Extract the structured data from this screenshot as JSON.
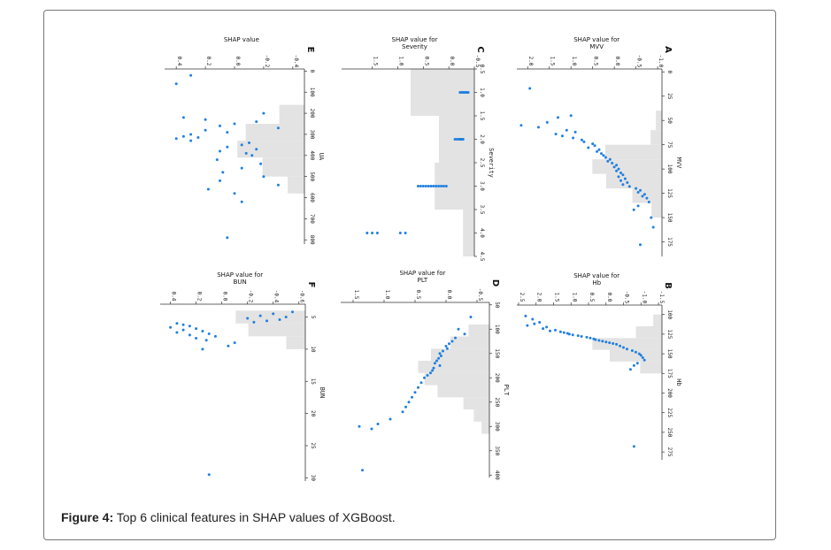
{
  "caption": {
    "label": "Figure 4:",
    "text": "Top 6 clinical features in SHAP values of XGBoost."
  },
  "colors": {
    "points": "#1f7fe0",
    "histogram": "#e3e3e3",
    "frame": "#777777"
  },
  "chart_data": [
    {
      "type": "scatter",
      "letter": "A",
      "feature": "MVV",
      "title": [
        "SHAP value for",
        "MVV"
      ],
      "xlabel": "MVV",
      "ylabel": "",
      "xlim": [
        -3,
        190
      ],
      "ylim": [
        -1.1,
        2.25
      ],
      "xticks": [
        0,
        25,
        50,
        75,
        100,
        125,
        150,
        175
      ],
      "yticks": [
        -1.0,
        -0.5,
        0.0,
        0.5,
        1.0,
        1.5,
        2.0
      ],
      "ytick_labels": [
        "-1.0",
        "-0.5",
        "0.0",
        "0.5",
        "1.0",
        "1.5",
        "2.0"
      ],
      "hist": {
        "edges": [
          40,
          60,
          75,
          90,
          105,
          120,
          135,
          150
        ],
        "counts": [
          7,
          13,
          65,
          80,
          64,
          34,
          12
        ]
      },
      "points": [
        [
          17,
          1.95
        ],
        [
          45,
          1.0
        ],
        [
          47,
          1.3
        ],
        [
          52,
          1.55
        ],
        [
          55,
          2.15
        ],
        [
          57,
          1.75
        ],
        [
          60,
          1.1
        ],
        [
          62,
          0.9
        ],
        [
          64,
          1.35
        ],
        [
          66,
          1.2
        ],
        [
          68,
          0.95
        ],
        [
          70,
          0.75
        ],
        [
          72,
          0.7
        ],
        [
          74,
          0.5
        ],
        [
          76,
          0.45
        ],
        [
          78,
          0.6
        ],
        [
          80,
          0.35
        ],
        [
          82,
          0.4
        ],
        [
          84,
          0.3
        ],
        [
          86,
          0.25
        ],
        [
          88,
          0.2
        ],
        [
          90,
          0.1
        ],
        [
          92,
          0.15
        ],
        [
          94,
          0.05
        ],
        [
          96,
          -0.05
        ],
        [
          98,
          0.0
        ],
        [
          100,
          -0.1
        ],
        [
          102,
          -0.05
        ],
        [
          104,
          -0.15
        ],
        [
          106,
          -0.2
        ],
        [
          108,
          -0.1
        ],
        [
          110,
          -0.25
        ],
        [
          112,
          -0.15
        ],
        [
          114,
          -0.3
        ],
        [
          116,
          -0.2
        ],
        [
          118,
          -0.35
        ],
        [
          120,
          -0.5
        ],
        [
          122,
          -0.6
        ],
        [
          124,
          -0.55
        ],
        [
          126,
          -0.7
        ],
        [
          128,
          -0.65
        ],
        [
          130,
          -0.75
        ],
        [
          134,
          -0.8
        ],
        [
          138,
          -0.55
        ],
        [
          142,
          -0.45
        ],
        [
          150,
          -0.85
        ],
        [
          160,
          -0.9
        ],
        [
          178,
          -0.6
        ]
      ]
    },
    {
      "type": "scatter",
      "letter": "B",
      "feature": "Hb",
      "title": [
        "SHAP value for",
        "Hb"
      ],
      "xlabel": "Hb",
      "ylabel": "",
      "xlim": [
        88,
        285
      ],
      "ylim": [
        -1.6,
        2.55
      ],
      "xticks": [
        100,
        125,
        150,
        175,
        200,
        225,
        250,
        275
      ],
      "yticks": [
        -1.5,
        -1.0,
        -0.5,
        0.0,
        0.5,
        1.0,
        1.5,
        2.0,
        2.5
      ],
      "ytick_labels": [
        "-1.5",
        "-1.0",
        "-0.5",
        "0.0",
        "0.5",
        "1.0",
        "1.5",
        "2.0",
        "2.5"
      ],
      "hist": {
        "edges": [
          100,
          115,
          130,
          145,
          160,
          175
        ],
        "counts": [
          10,
          30,
          80,
          60,
          25
        ]
      },
      "points": [
        [
          102,
          2.3
        ],
        [
          106,
          2.1
        ],
        [
          110,
          1.9
        ],
        [
          112,
          2.05
        ],
        [
          114,
          2.25
        ],
        [
          116,
          1.7
        ],
        [
          118,
          1.8
        ],
        [
          120,
          1.45
        ],
        [
          121,
          1.6
        ],
        [
          122,
          1.3
        ],
        [
          123,
          1.2
        ],
        [
          124,
          1.1
        ],
        [
          125,
          1.05
        ],
        [
          126,
          0.95
        ],
        [
          127,
          0.8
        ],
        [
          128,
          0.7
        ],
        [
          129,
          0.55
        ],
        [
          130,
          0.45
        ],
        [
          131,
          0.35
        ],
        [
          132,
          0.3
        ],
        [
          133,
          0.2
        ],
        [
          134,
          0.1
        ],
        [
          135,
          0.0
        ],
        [
          136,
          -0.1
        ],
        [
          137,
          -0.2
        ],
        [
          138,
          -0.3
        ],
        [
          140,
          -0.4
        ],
        [
          142,
          -0.5
        ],
        [
          144,
          -0.6
        ],
        [
          146,
          -0.75
        ],
        [
          148,
          -0.85
        ],
        [
          150,
          -0.95
        ],
        [
          152,
          -1.0
        ],
        [
          155,
          -1.05
        ],
        [
          158,
          -1.1
        ],
        [
          162,
          -0.9
        ],
        [
          165,
          -0.8
        ],
        [
          170,
          -0.7
        ],
        [
          268,
          -0.8
        ]
      ]
    },
    {
      "type": "scatter",
      "letter": "C",
      "feature": "Severity",
      "title": [
        "SHAP value for",
        "Severity"
      ],
      "xlabel": "Severity",
      "ylabel": "",
      "xlim": [
        0.5,
        4.5
      ],
      "ylim": [
        -0.5,
        2.1
      ],
      "xticks": [
        0.5,
        1.0,
        1.5,
        2.0,
        2.5,
        3.0,
        3.5,
        4.0,
        4.5
      ],
      "xtick_labels": [
        "0.5",
        "1.0",
        "1.5",
        "2.0",
        "2.5",
        "3.0",
        "3.5",
        "4.0",
        "4.5"
      ],
      "yticks": [
        -0.5,
        0.0,
        0.5,
        1.0,
        1.5
      ],
      "ytick_labels": [
        "-0.5",
        "0.0",
        "0.5",
        "1.0",
        "1.5"
      ],
      "hist": {
        "edges": [
          0.5,
          1.5,
          2.5,
          3.5,
          4.5
        ],
        "counts": [
          45,
          25,
          28,
          8
        ]
      },
      "points": [
        [
          1.0,
          -0.38
        ],
        [
          1.0,
          -0.33
        ],
        [
          1.0,
          -0.28
        ],
        [
          1.0,
          -0.25
        ],
        [
          1.0,
          -0.22
        ],
        [
          1.0,
          -0.3
        ],
        [
          1.0,
          -0.35
        ],
        [
          2.0,
          -0.28
        ],
        [
          2.0,
          -0.24
        ],
        [
          2.0,
          -0.2
        ],
        [
          2.0,
          -0.16
        ],
        [
          2.0,
          -0.12
        ],
        [
          2.0,
          -0.22
        ],
        [
          2.0,
          -0.26
        ],
        [
          3.0,
          0.05
        ],
        [
          3.0,
          0.1
        ],
        [
          3.0,
          0.15
        ],
        [
          3.0,
          0.2
        ],
        [
          3.0,
          0.25
        ],
        [
          3.0,
          0.3
        ],
        [
          3.0,
          0.35
        ],
        [
          3.0,
          0.4
        ],
        [
          3.0,
          0.45
        ],
        [
          3.0,
          0.5
        ],
        [
          3.0,
          0.55
        ],
        [
          3.0,
          0.6
        ],
        [
          4.0,
          0.85
        ],
        [
          4.0,
          0.95
        ],
        [
          4.0,
          1.4
        ],
        [
          4.0,
          1.5
        ],
        [
          4.0,
          1.6
        ]
      ]
    },
    {
      "type": "scatter",
      "letter": "D",
      "feature": "PLT",
      "title": [
        "SHAP value for",
        "PLT"
      ],
      "xlabel": "PLT",
      "ylabel": "",
      "xlim": [
        45,
        405
      ],
      "ylim": [
        -0.7,
        1.7
      ],
      "xticks": [
        50,
        100,
        150,
        200,
        250,
        300,
        350,
        400
      ],
      "yticks": [
        -0.5,
        0.0,
        0.5,
        1.0,
        1.5
      ],
      "ytick_labels": [
        "-0.5",
        "0.0",
        "0.5",
        "1.0",
        "1.5"
      ],
      "hist": {
        "edges": [
          90,
          115,
          140,
          165,
          190,
          215,
          240,
          265,
          290,
          315
        ],
        "counts": [
          16,
          30,
          45,
          55,
          50,
          40,
          20,
          12,
          6
        ]
      },
      "points": [
        [
          75,
          -0.4
        ],
        [
          100,
          -0.2
        ],
        [
          110,
          -0.3
        ],
        [
          118,
          -0.15
        ],
        [
          125,
          -0.1
        ],
        [
          130,
          -0.05
        ],
        [
          135,
          0.0
        ],
        [
          140,
          -0.02
        ],
        [
          145,
          0.05
        ],
        [
          150,
          0.1
        ],
        [
          155,
          0.08
        ],
        [
          160,
          0.12
        ],
        [
          165,
          0.15
        ],
        [
          170,
          0.18
        ],
        [
          175,
          0.1
        ],
        [
          180,
          0.2
        ],
        [
          185,
          0.22
        ],
        [
          190,
          0.25
        ],
        [
          195,
          0.3
        ],
        [
          200,
          0.35
        ],
        [
          210,
          0.4
        ],
        [
          220,
          0.45
        ],
        [
          230,
          0.5
        ],
        [
          240,
          0.55
        ],
        [
          250,
          0.6
        ],
        [
          260,
          0.65
        ],
        [
          270,
          0.7
        ],
        [
          285,
          0.9
        ],
        [
          295,
          1.1
        ],
        [
          300,
          1.4
        ],
        [
          305,
          1.2
        ],
        [
          390,
          1.35
        ]
      ]
    },
    {
      "type": "scatter",
      "letter": "E",
      "feature": "UA",
      "title": [
        "SHAP value",
        ""
      ],
      "xlabel": "UA",
      "ylabel": "",
      "xlim": [
        -10,
        820
      ],
      "ylim": [
        -0.48,
        0.48
      ],
      "xticks": [
        0,
        100,
        200,
        300,
        400,
        500,
        600,
        700,
        800
      ],
      "yticks": [
        -0.4,
        -0.2,
        0.0,
        0.2,
        0.4
      ],
      "ytick_labels": [
        "-0.4",
        "-0.2",
        "0.0",
        "0.2",
        "0.4"
      ],
      "hist": {
        "edges": [
          160,
          250,
          330,
          410,
          500,
          580
        ],
        "counts": [
          30,
          70,
          80,
          50,
          20
        ]
      },
      "points": [
        [
          20,
          0.3
        ],
        [
          60,
          0.4
        ],
        [
          200,
          -0.2
        ],
        [
          220,
          0.35
        ],
        [
          230,
          0.2
        ],
        [
          240,
          -0.15
        ],
        [
          250,
          0.0
        ],
        [
          260,
          0.1
        ],
        [
          270,
          -0.3
        ],
        [
          280,
          0.2
        ],
        [
          290,
          0.05
        ],
        [
          300,
          0.3
        ],
        [
          310,
          0.35
        ],
        [
          315,
          0.25
        ],
        [
          320,
          0.4
        ],
        [
          330,
          0.3
        ],
        [
          340,
          -0.1
        ],
        [
          350,
          -0.05
        ],
        [
          360,
          0.05
        ],
        [
          370,
          -0.15
        ],
        [
          380,
          0.1
        ],
        [
          390,
          -0.08
        ],
        [
          400,
          -0.12
        ],
        [
          420,
          0.12
        ],
        [
          440,
          -0.18
        ],
        [
          460,
          -0.05
        ],
        [
          480,
          0.08
        ],
        [
          500,
          -0.2
        ],
        [
          520,
          0.1
        ],
        [
          540,
          -0.3
        ],
        [
          560,
          0.18
        ],
        [
          580,
          0.0
        ],
        [
          620,
          -0.05
        ],
        [
          790,
          0.05
        ]
      ]
    },
    {
      "type": "scatter",
      "letter": "F",
      "feature": "BUN",
      "title": [
        "SHAP value for",
        "BUN"
      ],
      "xlabel": "BUN",
      "ylabel": "",
      "xlim": [
        3,
        30.5
      ],
      "ylim": [
        -0.65,
        0.48
      ],
      "xticks": [
        5,
        10,
        15,
        20,
        25,
        30
      ],
      "yticks": [
        -0.6,
        -0.4,
        -0.2,
        0.0,
        0.2,
        0.4
      ],
      "ytick_labels": [
        "-0.6",
        "-0.4",
        "-0.2",
        "0.0",
        "0.2",
        "0.4"
      ],
      "hist": {
        "edges": [
          4,
          6,
          8,
          10
        ],
        "counts": [
          55,
          45,
          15
        ]
      },
      "points": [
        [
          4.2,
          -0.55
        ],
        [
          4.5,
          -0.4
        ],
        [
          4.8,
          -0.3
        ],
        [
          5.0,
          -0.5
        ],
        [
          5.2,
          -0.2
        ],
        [
          5.4,
          -0.45
        ],
        [
          5.6,
          -0.35
        ],
        [
          5.8,
          -0.25
        ],
        [
          6.0,
          0.35
        ],
        [
          6.2,
          0.3
        ],
        [
          6.4,
          0.25
        ],
        [
          6.6,
          0.4
        ],
        [
          6.8,
          0.2
        ],
        [
          7.0,
          0.3
        ],
        [
          7.2,
          0.15
        ],
        [
          7.4,
          0.35
        ],
        [
          7.6,
          0.1
        ],
        [
          7.8,
          0.25
        ],
        [
          8.0,
          0.05
        ],
        [
          8.3,
          0.2
        ],
        [
          8.6,
          0.12
        ],
        [
          9.0,
          -0.1
        ],
        [
          9.5,
          -0.05
        ],
        [
          10.0,
          0.15
        ],
        [
          29.5,
          0.1
        ]
      ]
    }
  ]
}
